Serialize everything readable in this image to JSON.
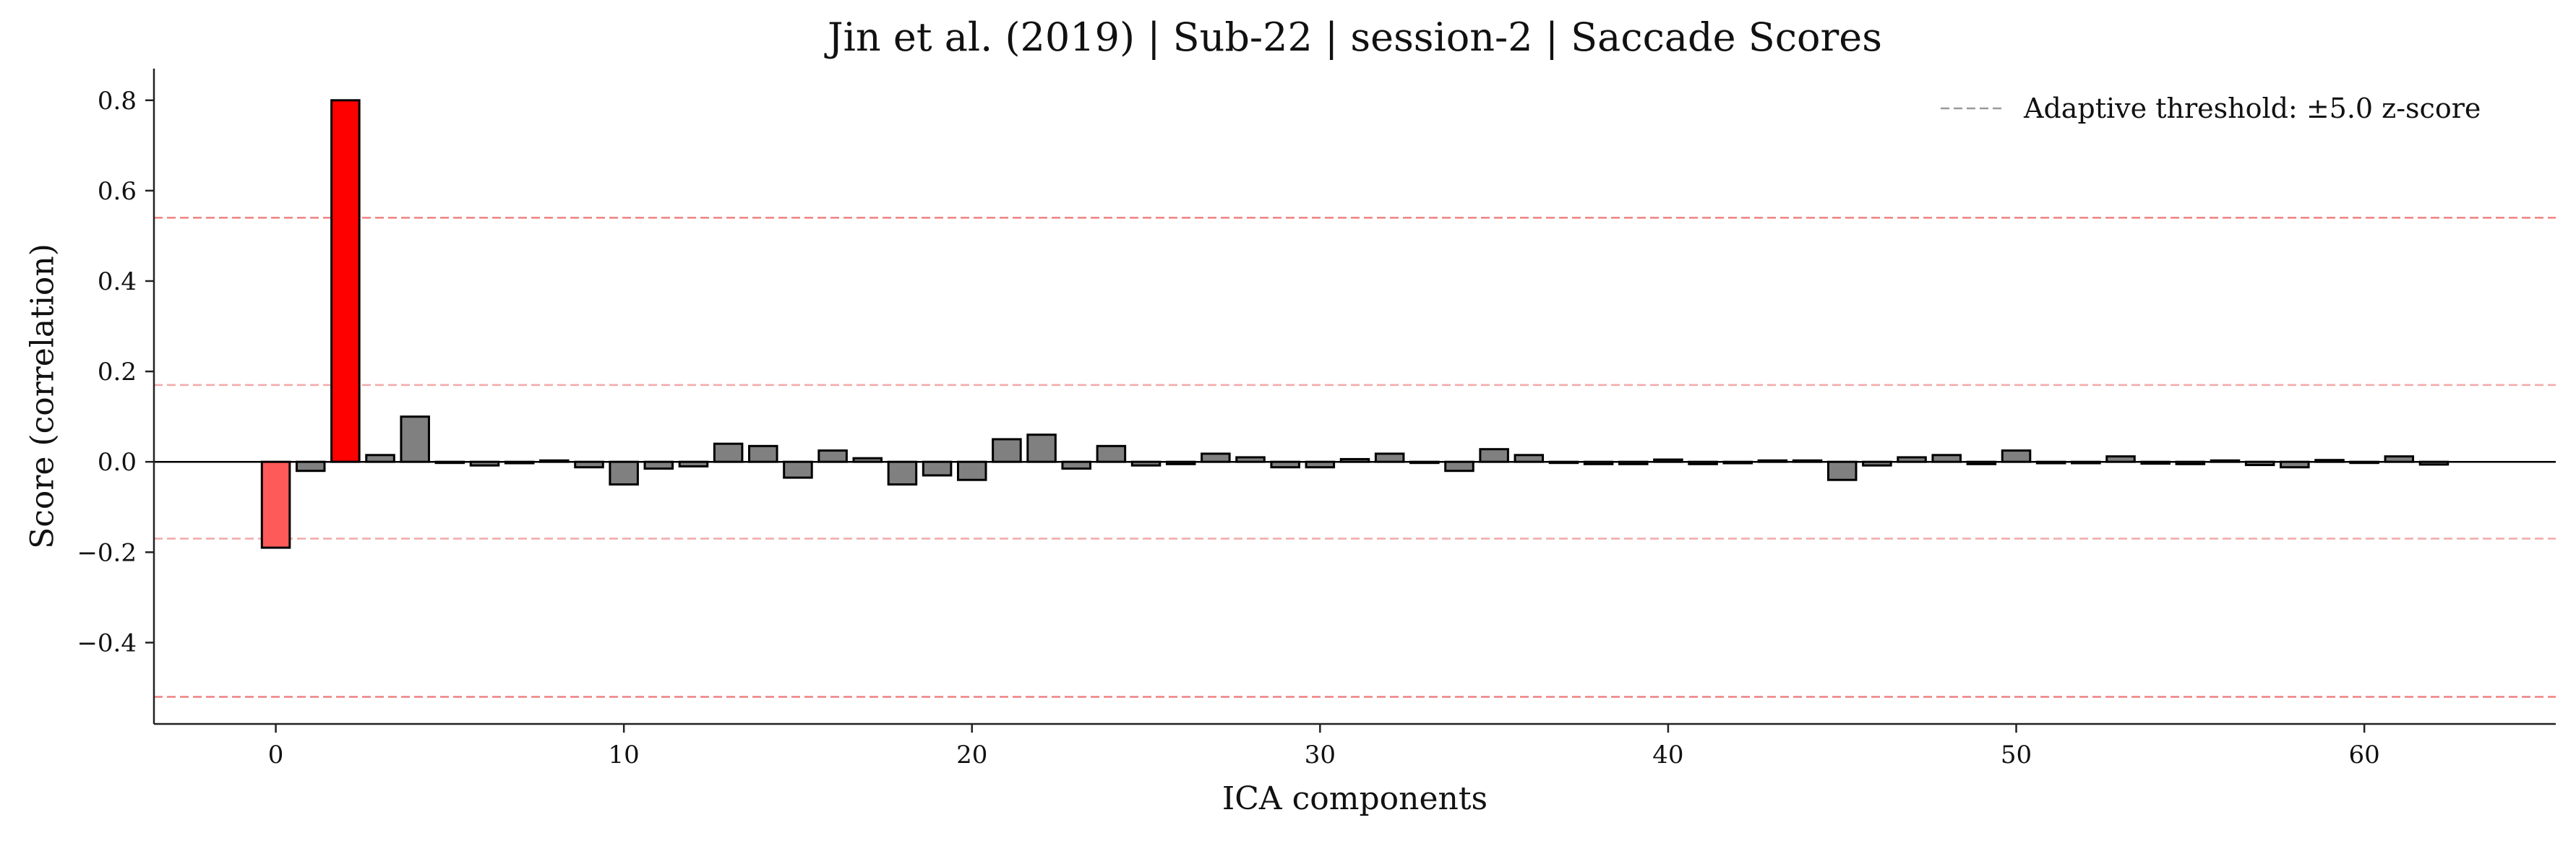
{
  "chart_data": {
    "type": "bar",
    "title": "Jin et al. (2019) | Sub-22 | session-2 | Saccade Scores",
    "xlabel": "ICA components",
    "ylabel": "Score (correlation)",
    "xlim": [
      -3.5,
      65.5
    ],
    "ylim": [
      -0.58,
      0.87
    ],
    "xticks": [
      0,
      10,
      20,
      30,
      40,
      50,
      60
    ],
    "yticks": [
      -0.4,
      -0.2,
      0.0,
      0.2,
      0.4,
      0.6,
      0.8
    ],
    "ytick_labels": [
      "−0.4",
      "−0.2",
      "0.0",
      "0.2",
      "0.4",
      "0.6",
      "0.8"
    ],
    "grid": false,
    "legend": {
      "position": "top-right",
      "entries": [
        {
          "label": "Adaptive threshold: ±5.0 z-score",
          "style": "dashed",
          "color": "#999999"
        }
      ]
    },
    "threshold_lines": [
      {
        "value": 0.54,
        "color": "#f08080"
      },
      {
        "value": -0.52,
        "color": "#f08080"
      },
      {
        "value": 0.17,
        "color": "#f4a9a9"
      },
      {
        "value": -0.17,
        "color": "#f4a9a9"
      }
    ],
    "zero_line": {
      "value": 0.0,
      "color": "#000000"
    },
    "components": [
      0,
      1,
      2,
      3,
      4,
      5,
      6,
      7,
      8,
      9,
      10,
      11,
      12,
      13,
      14,
      15,
      16,
      17,
      18,
      19,
      20,
      21,
      22,
      23,
      24,
      25,
      26,
      27,
      28,
      29,
      30,
      31,
      32,
      33,
      34,
      35,
      36,
      37,
      38,
      39,
      40,
      41,
      42,
      43,
      44,
      45,
      46,
      47,
      48,
      49,
      50,
      51,
      52,
      53,
      54,
      55,
      56,
      57,
      58,
      59,
      60,
      61,
      62
    ],
    "values": [
      -0.19,
      -0.02,
      0.8,
      0.015,
      0.1,
      0.0,
      -0.008,
      -0.003,
      0.003,
      -0.012,
      -0.05,
      -0.015,
      -0.01,
      0.04,
      0.035,
      -0.035,
      0.025,
      0.008,
      -0.05,
      -0.03,
      -0.04,
      0.05,
      0.06,
      -0.015,
      0.035,
      -0.008,
      -0.005,
      0.018,
      0.01,
      -0.012,
      -0.012,
      0.006,
      0.018,
      0.0,
      -0.02,
      0.028,
      0.015,
      0.0,
      -0.005,
      -0.005,
      0.005,
      -0.005,
      -0.003,
      0.003,
      0.003,
      -0.04,
      -0.008,
      0.01,
      0.015,
      -0.005,
      0.025,
      -0.003,
      -0.003,
      0.012,
      -0.004,
      -0.005,
      0.003,
      -0.007,
      -0.012,
      0.004,
      0.0,
      0.012,
      -0.006
    ],
    "bar_colors": {
      "default": "#808080",
      "flagged_positive": "#ff0000",
      "flagged_negative": "#ff5a5a",
      "edge": "#000000",
      "flagged": {
        "2": "flagged_positive",
        "0": "flagged_negative"
      }
    }
  }
}
